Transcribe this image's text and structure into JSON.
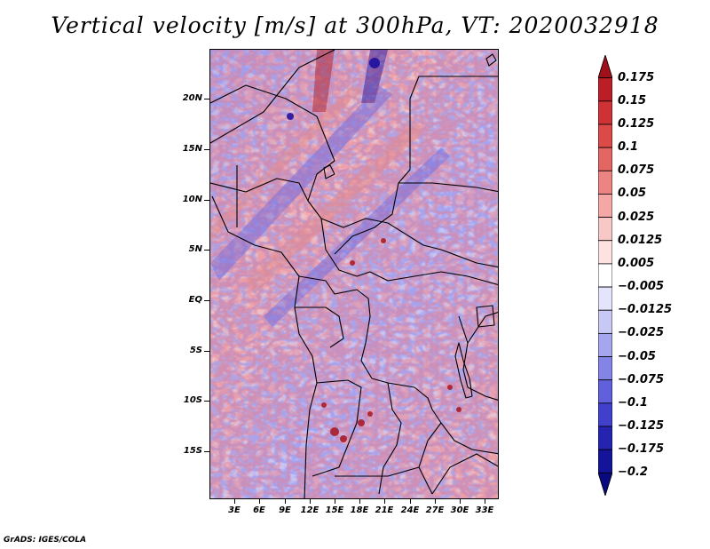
{
  "title": "Vertical velocity [m/s] at 300hPa, VT: 2020032918",
  "credit": "GrADS: IGES/COLA",
  "map": {
    "lat_labels": [
      "20N",
      "15N",
      "10N",
      "5N",
      "EQ",
      "5S",
      "10S",
      "15S"
    ],
    "lon_labels": [
      "3E",
      "6E",
      "9E",
      "12E",
      "15E",
      "18E",
      "21E",
      "24E",
      "27E",
      "30E",
      "33E"
    ],
    "field_description_colors": {
      "strong_down": "#1a0a9c",
      "down": "#6c6ae6",
      "weak_down": "#c9c9f7",
      "neutral": "#ffffff",
      "weak_up": "#f7c9c9",
      "up": "#e98282",
      "strong_up": "#a8141e"
    }
  },
  "colorbar": {
    "levels": [
      "0.175",
      "0.15",
      "0.125",
      "0.1",
      "0.075",
      "0.05",
      "0.025",
      "0.0125",
      "0.005",
      "−0.005",
      "−0.0125",
      "−0.025",
      "−0.05",
      "−0.075",
      "−0.1",
      "−0.125",
      "−0.175",
      "−0.2"
    ],
    "colors": [
      "#a0101a",
      "#bb1e24",
      "#cf3234",
      "#dc4a48",
      "#e46662",
      "#ec8582",
      "#f3a8a6",
      "#f8c8c6",
      "#fce2e0",
      "#ffffff",
      "#e4e4fc",
      "#c8c8f6",
      "#a6a6ee",
      "#8484e6",
      "#6060dc",
      "#4040cc",
      "#2424b0",
      "#14149a",
      "#0a0a80"
    ]
  }
}
